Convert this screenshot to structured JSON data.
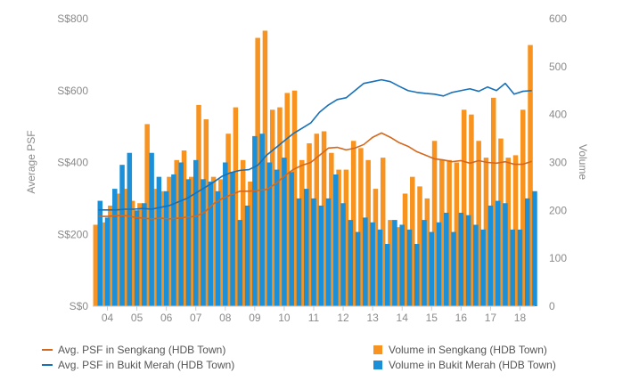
{
  "chart_data": {
    "type": "bar+line",
    "title": "",
    "xlabel": "",
    "ylabel_left": "Average PSF",
    "ylabel_right": "Volume",
    "left_axis": {
      "ticks": [
        "S$0",
        "S$200",
        "S$400",
        "S$600",
        "S$800"
      ],
      "values": [
        0,
        200,
        400,
        600,
        800
      ],
      "range": [
        0,
        800
      ]
    },
    "right_axis": {
      "ticks": [
        "0",
        "100",
        "200",
        "300",
        "400",
        "500",
        "600"
      ],
      "values": [
        0,
        100,
        200,
        300,
        400,
        500,
        600
      ],
      "range": [
        0,
        600
      ]
    },
    "x_ticks": [
      "04",
      "05",
      "06",
      "07",
      "08",
      "09",
      "10",
      "11",
      "12",
      "13",
      "14",
      "15",
      "16",
      "17",
      "18"
    ],
    "x_range": [
      2003.5,
      2018.5
    ],
    "grid": false,
    "legend_position": "bottom",
    "colors": {
      "sengkang": "#f7931e",
      "bukit_merah": "#1b8fd8",
      "sengkang_line": "#d4691e",
      "bukit_merah_line": "#1870b8"
    },
    "series": [
      {
        "name": "Volume in Sengkang (HDB Town)",
        "kind": "bar",
        "axis": "right",
        "color": "#f7931e",
        "x": [
          2003.6,
          2003.85,
          2004.1,
          2004.35,
          2004.6,
          2004.85,
          2005.1,
          2005.35,
          2005.6,
          2005.85,
          2006.1,
          2006.35,
          2006.6,
          2006.85,
          2007.1,
          2007.35,
          2007.6,
          2007.85,
          2008.1,
          2008.35,
          2008.6,
          2008.85,
          2009.1,
          2009.35,
          2009.6,
          2009.85,
          2010.1,
          2010.35,
          2010.6,
          2010.85,
          2011.1,
          2011.35,
          2011.6,
          2011.85,
          2012.1,
          2012.35,
          2012.6,
          2012.85,
          2013.1,
          2013.35,
          2013.6,
          2013.85,
          2014.1,
          2014.35,
          2014.6,
          2014.85,
          2015.1,
          2015.35,
          2015.6,
          2015.85,
          2016.1,
          2016.35,
          2016.6,
          2016.85,
          2017.1,
          2017.35,
          2017.6,
          2017.85,
          2018.1,
          2018.35
        ],
        "values": [
          170,
          175,
          210,
          235,
          245,
          220,
          215,
          380,
          245,
          240,
          270,
          305,
          325,
          270,
          420,
          390,
          270,
          265,
          360,
          415,
          305,
          260,
          560,
          575,
          410,
          415,
          445,
          450,
          305,
          340,
          360,
          365,
          320,
          285,
          285,
          345,
          330,
          305,
          245,
          310,
          180,
          165,
          235,
          270,
          250,
          225,
          345,
          305,
          305,
          300,
          410,
          400,
          345,
          310,
          435,
          350,
          310,
          315,
          410,
          545
        ]
      },
      {
        "name": "Volume in Bukit Merah (HDB Town)",
        "kind": "bar",
        "axis": "right",
        "color": "#1b8fd8",
        "x": [
          2003.75,
          2004.0,
          2004.25,
          2004.5,
          2004.75,
          2005.0,
          2005.25,
          2005.5,
          2005.75,
          2006.0,
          2006.25,
          2006.5,
          2006.75,
          2007.0,
          2007.25,
          2007.5,
          2007.75,
          2008.0,
          2008.25,
          2008.5,
          2008.75,
          2009.0,
          2009.25,
          2009.5,
          2009.75,
          2010.0,
          2010.25,
          2010.5,
          2010.75,
          2011.0,
          2011.25,
          2011.5,
          2011.75,
          2012.0,
          2012.25,
          2012.5,
          2012.75,
          2013.0,
          2013.25,
          2013.5,
          2013.75,
          2014.0,
          2014.25,
          2014.5,
          2014.75,
          2015.0,
          2015.25,
          2015.5,
          2015.75,
          2016.0,
          2016.25,
          2016.5,
          2016.75,
          2017.0,
          2017.25,
          2017.5,
          2017.75,
          2018.0,
          2018.25,
          2018.5
        ],
        "values": [
          220,
          185,
          245,
          295,
          320,
          200,
          215,
          320,
          270,
          240,
          275,
          300,
          265,
          305,
          265,
          260,
          240,
          300,
          280,
          180,
          210,
          355,
          360,
          300,
          285,
          310,
          280,
          225,
          245,
          225,
          210,
          225,
          275,
          215,
          180,
          155,
          185,
          175,
          160,
          130,
          180,
          170,
          160,
          130,
          180,
          155,
          175,
          195,
          155,
          195,
          190,
          170,
          160,
          210,
          220,
          215,
          160,
          160,
          225,
          240
        ]
      },
      {
        "name": "Avg. PSF in Sengkang (HDB Town)",
        "kind": "line",
        "axis": "left",
        "color": "#d4691e",
        "x": [
          2003.7,
          2004.0,
          2004.3,
          2004.6,
          2004.9,
          2005.2,
          2005.5,
          2005.8,
          2006.1,
          2006.4,
          2006.7,
          2007.0,
          2007.3,
          2007.6,
          2007.9,
          2008.2,
          2008.5,
          2008.8,
          2009.1,
          2009.4,
          2009.7,
          2010.0,
          2010.3,
          2010.6,
          2010.9,
          2011.2,
          2011.5,
          2011.8,
          2012.1,
          2012.4,
          2012.7,
          2013.0,
          2013.3,
          2013.6,
          2013.9,
          2014.2,
          2014.5,
          2014.8,
          2015.1,
          2015.4,
          2015.7,
          2016.0,
          2016.3,
          2016.6,
          2016.9,
          2017.2,
          2017.5,
          2017.8,
          2018.1,
          2018.4
        ],
        "values": [
          250,
          250,
          252,
          252,
          248,
          245,
          243,
          245,
          243,
          245,
          248,
          250,
          262,
          285,
          300,
          310,
          320,
          320,
          322,
          325,
          340,
          362,
          380,
          392,
          400,
          420,
          440,
          442,
          435,
          440,
          450,
          470,
          482,
          470,
          455,
          445,
          430,
          420,
          410,
          407,
          402,
          405,
          398,
          405,
          400,
          398,
          402,
          395,
          395,
          403
        ]
      },
      {
        "name": "Avg. PSF in Bukit Merah (HDB Town)",
        "kind": "line",
        "axis": "left",
        "color": "#1870b8",
        "x": [
          2003.7,
          2004.0,
          2004.3,
          2004.6,
          2004.9,
          2005.2,
          2005.5,
          2005.8,
          2006.1,
          2006.4,
          2006.7,
          2007.0,
          2007.3,
          2007.6,
          2007.9,
          2008.2,
          2008.5,
          2008.8,
          2009.1,
          2009.4,
          2009.7,
          2010.0,
          2010.3,
          2010.6,
          2010.9,
          2011.2,
          2011.5,
          2011.8,
          2012.1,
          2012.4,
          2012.7,
          2013.0,
          2013.3,
          2013.6,
          2013.9,
          2014.2,
          2014.5,
          2014.8,
          2015.1,
          2015.4,
          2015.7,
          2016.0,
          2016.3,
          2016.6,
          2016.9,
          2017.2,
          2017.5,
          2017.8,
          2018.1,
          2018.4
        ],
        "values": [
          268,
          268,
          268,
          270,
          270,
          272,
          270,
          275,
          280,
          290,
          300,
          315,
          330,
          345,
          362,
          372,
          378,
          380,
          392,
          420,
          440,
          460,
          480,
          495,
          510,
          540,
          560,
          575,
          580,
          600,
          620,
          625,
          630,
          625,
          612,
          600,
          595,
          592,
          590,
          585,
          595,
          600,
          605,
          598,
          610,
          600,
          620,
          590,
          598,
          600
        ]
      }
    ],
    "legend": [
      {
        "label": "Avg. PSF in Sengkang (HDB Town)",
        "kind": "line",
        "color": "#d4691e"
      },
      {
        "label": "Volume in Sengkang (HDB Town)",
        "kind": "bar",
        "color": "#f7931e"
      },
      {
        "label": "Avg. PSF in Bukit Merah (HDB Town)",
        "kind": "line",
        "color": "#1870b8"
      },
      {
        "label": "Volume in Bukit Merah (HDB Town)",
        "kind": "bar",
        "color": "#1b8fd8"
      }
    ]
  }
}
